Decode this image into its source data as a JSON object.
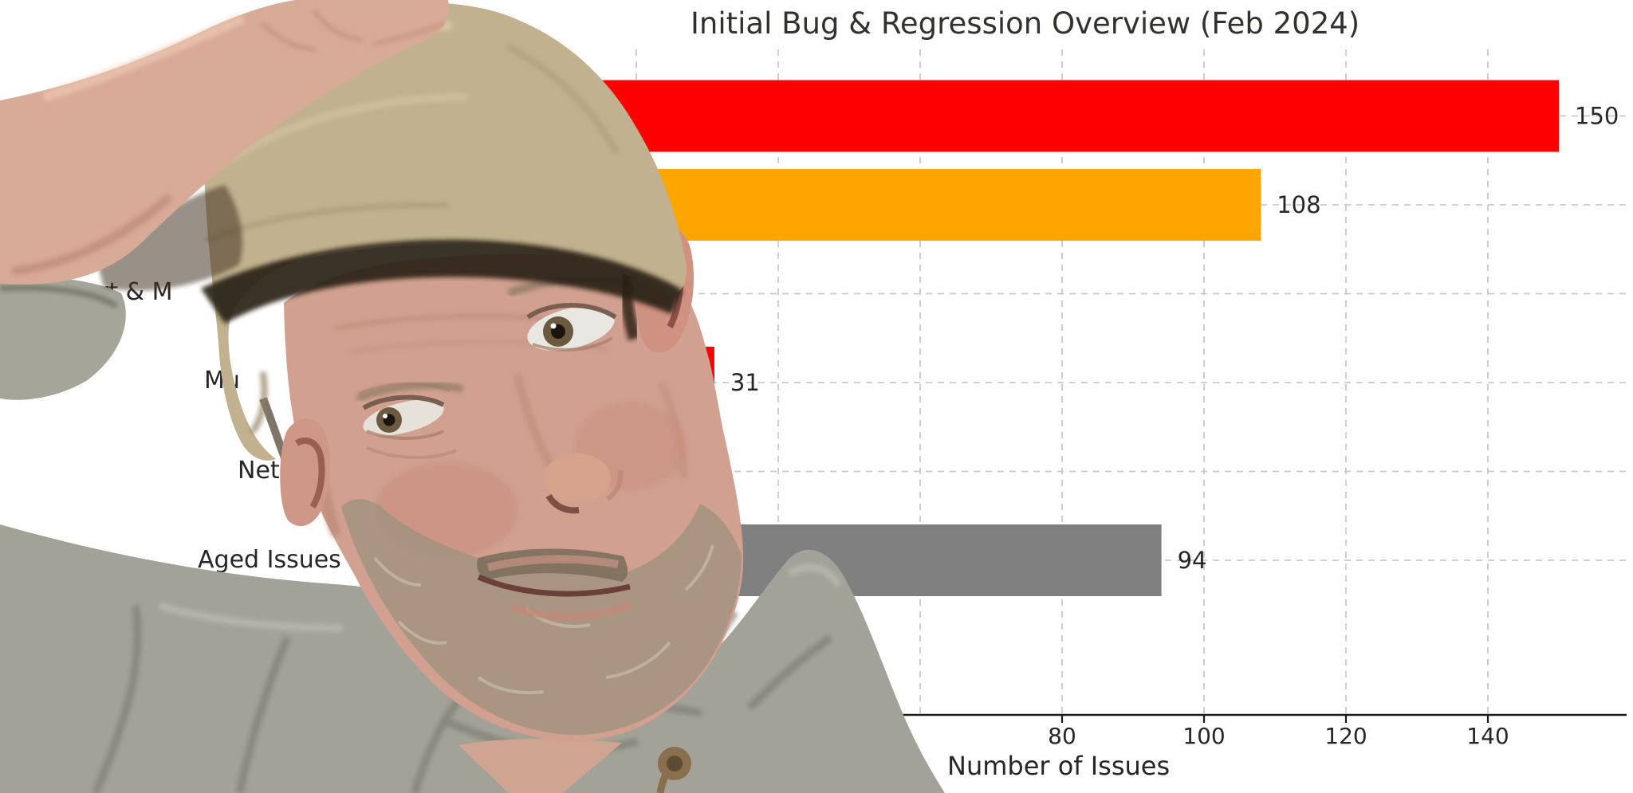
{
  "chart_data": {
    "type": "bar",
    "orientation": "horizontal",
    "title": "Initial Bug & Regression Overview (Feb 2024)",
    "xlabel": "Number of Issues",
    "xticks": [
      80,
      100,
      120,
      140
    ],
    "xlim": [
      -20,
      160
    ],
    "grid": {
      "style": "dashed",
      "color": "#c9c9c7",
      "vertical_values": [
        20,
        40,
        60,
        80,
        100,
        120,
        140
      ],
      "horizontal": "one dashed line per category row"
    },
    "background": "#ffffff",
    "text_color": "#262626",
    "axis_color": "#1a1a1a",
    "bars": [
      {
        "label_fragment": "",
        "label_hidden_by_photo": true,
        "value": 150,
        "color": "#fe0000"
      },
      {
        "label_fragment": "",
        "label_hidden_by_photo": true,
        "value": 108,
        "color": "#ffa500"
      },
      {
        "label_fragment": "nsport & M",
        "label_hidden_by_photo": false,
        "value": null,
        "color": null
      },
      {
        "label_fragment": "Mu",
        "label_hidden_by_photo": false,
        "value": 31,
        "color": "#fe0000"
      },
      {
        "label_fragment": "Netc",
        "label_hidden_by_photo": false,
        "value": null,
        "color": null
      },
      {
        "label_fragment": "Aged Issues",
        "label_hidden_by_photo": false,
        "value": 94,
        "color": "#808080"
      }
    ]
  },
  "photo_overlay": {
    "description": "Background-removed selfie cutout of a man wearing a tan flat cap and gray hoodie, one hand resting on top of his head, pasted over the left half of the chart",
    "cap_color": "#c2b18e",
    "hoodie_color": "#a3a298",
    "skin_color": "#d1a090"
  }
}
